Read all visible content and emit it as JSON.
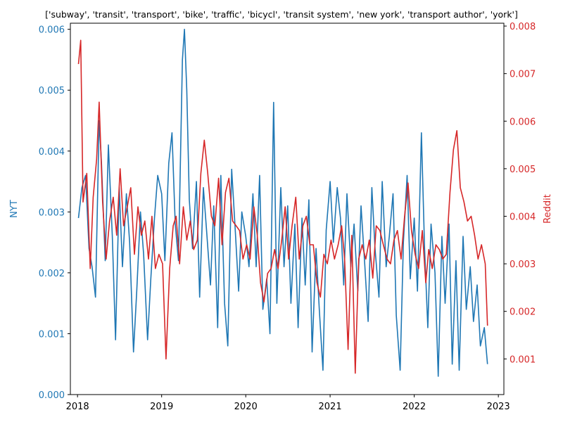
{
  "chart_data": {
    "type": "line",
    "title": "['subway', 'transit', 'transport', 'bike', 'traffic', 'bicycl', 'transit system', 'new york', 'transport author', 'york']",
    "xlabel": "",
    "x_ticks": [
      "2018",
      "2019",
      "2020",
      "2021",
      "2022",
      "2023"
    ],
    "xlim": [
      "2017-12-01",
      "2023-01-25"
    ],
    "grid": false,
    "series": [
      {
        "name": "NYT",
        "axis": "left",
        "color": "#1f77b4",
        "ylabel": "NYT",
        "ylim": [
          0,
          0.0061
        ],
        "y_ticks": [
          "0.000",
          "0.001",
          "0.002",
          "0.003",
          "0.004",
          "0.005",
          "0.006"
        ],
        "x": [
          "2018-01-05",
          "2018-01-20",
          "2018-02-05",
          "2018-02-20",
          "2018-03-05",
          "2018-03-20",
          "2018-04-05",
          "2018-04-15",
          "2018-05-01",
          "2018-05-15",
          "2018-06-01",
          "2018-06-15",
          "2018-07-01",
          "2018-07-15",
          "2018-08-01",
          "2018-08-15",
          "2018-09-01",
          "2018-09-15",
          "2018-10-01",
          "2018-10-15",
          "2018-11-01",
          "2018-11-15",
          "2018-12-01",
          "2018-12-15",
          "2019-01-01",
          "2019-01-15",
          "2019-02-01",
          "2019-02-15",
          "2019-03-01",
          "2019-03-15",
          "2019-04-01",
          "2019-04-10",
          "2019-04-20",
          "2019-05-01",
          "2019-05-15",
          "2019-06-01",
          "2019-06-15",
          "2019-07-01",
          "2019-07-15",
          "2019-08-01",
          "2019-08-15",
          "2019-09-01",
          "2019-09-15",
          "2019-10-01",
          "2019-10-15",
          "2019-11-01",
          "2019-11-15",
          "2019-12-01",
          "2019-12-15",
          "2020-01-01",
          "2020-01-15",
          "2020-02-01",
          "2020-02-15",
          "2020-03-01",
          "2020-03-15",
          "2020-04-01",
          "2020-04-15",
          "2020-05-01",
          "2020-05-15",
          "2020-06-01",
          "2020-06-15",
          "2020-07-01",
          "2020-07-15",
          "2020-08-01",
          "2020-08-15",
          "2020-09-01",
          "2020-09-15",
          "2020-10-01",
          "2020-10-15",
          "2020-11-01",
          "2020-11-15",
          "2020-12-01",
          "2020-12-15",
          "2021-01-01",
          "2021-01-15",
          "2021-02-01",
          "2021-02-15",
          "2021-03-01",
          "2021-03-15",
          "2021-04-01",
          "2021-04-15",
          "2021-05-01",
          "2021-05-15",
          "2021-06-01",
          "2021-06-15",
          "2021-07-01",
          "2021-07-15",
          "2021-08-01",
          "2021-08-15",
          "2021-09-01",
          "2021-09-15",
          "2021-10-01",
          "2021-10-15",
          "2021-11-01",
          "2021-11-15",
          "2021-12-01",
          "2021-12-15",
          "2022-01-01",
          "2022-01-15",
          "2022-02-01",
          "2022-02-15",
          "2022-03-01",
          "2022-03-15",
          "2022-04-01",
          "2022-04-15",
          "2022-05-01",
          "2022-05-15",
          "2022-06-01",
          "2022-06-15",
          "2022-07-01",
          "2022-07-15",
          "2022-08-01",
          "2022-08-15",
          "2022-09-01",
          "2022-09-15",
          "2022-10-01",
          "2022-10-15",
          "2022-11-01",
          "2022-11-15"
        ],
        "values": [
          0.0029,
          0.0034,
          0.0036,
          0.0024,
          0.0021,
          0.0016,
          0.0045,
          0.0038,
          0.0022,
          0.0041,
          0.0026,
          0.0009,
          0.0034,
          0.0021,
          0.0033,
          0.0025,
          0.0007,
          0.0017,
          0.003,
          0.0023,
          0.0009,
          0.0019,
          0.0029,
          0.0036,
          0.0033,
          0.0022,
          0.0038,
          0.0043,
          0.0028,
          0.0022,
          0.0055,
          0.006,
          0.005,
          0.0032,
          0.0024,
          0.0035,
          0.0016,
          0.0034,
          0.0027,
          0.0018,
          0.0031,
          0.0011,
          0.0036,
          0.0015,
          0.0008,
          0.0037,
          0.0028,
          0.0017,
          0.003,
          0.0026,
          0.0021,
          0.0033,
          0.0021,
          0.0036,
          0.0014,
          0.0019,
          0.001,
          0.0048,
          0.0015,
          0.0034,
          0.0021,
          0.0031,
          0.0015,
          0.0028,
          0.0011,
          0.0029,
          0.0018,
          0.0032,
          0.0007,
          0.0024,
          0.0014,
          0.0004,
          0.0027,
          0.0035,
          0.0025,
          0.0034,
          0.0029,
          0.0018,
          0.0033,
          0.0021,
          0.0028,
          0.0017,
          0.0031,
          0.0021,
          0.0012,
          0.0034,
          0.0024,
          0.0016,
          0.0035,
          0.0021,
          0.0026,
          0.0033,
          0.0013,
          0.0004,
          0.0025,
          0.0036,
          0.0019,
          0.0029,
          0.0017,
          0.0043,
          0.0024,
          0.0011,
          0.0028,
          0.002,
          0.0003,
          0.0026,
          0.0015,
          0.0028,
          0.0005,
          0.0022,
          0.0004,
          0.0026,
          0.0014,
          0.0021,
          0.0012,
          0.0018,
          0.0008,
          0.0011,
          0.0005
        ]
      },
      {
        "name": "Reddit",
        "axis": "right",
        "color": "#d62728",
        "ylabel": "Reddit",
        "ylim": [
          0.00025,
          0.00806
        ],
        "y_ticks": [
          "0.001",
          "0.002",
          "0.003",
          "0.004",
          "0.005",
          "0.006",
          "0.007",
          "0.008"
        ],
        "x": [
          "2018-01-05",
          "2018-01-15",
          "2018-01-25",
          "2018-02-10",
          "2018-02-25",
          "2018-03-10",
          "2018-03-25",
          "2018-04-05",
          "2018-04-20",
          "2018-05-05",
          "2018-05-20",
          "2018-06-05",
          "2018-06-20",
          "2018-07-05",
          "2018-07-20",
          "2018-08-05",
          "2018-08-20",
          "2018-09-05",
          "2018-09-20",
          "2018-10-05",
          "2018-10-20",
          "2018-11-05",
          "2018-11-20",
          "2018-12-05",
          "2018-12-20",
          "2019-01-05",
          "2019-01-20",
          "2019-02-05",
          "2019-02-20",
          "2019-03-05",
          "2019-03-20",
          "2019-04-05",
          "2019-04-20",
          "2019-05-05",
          "2019-05-20",
          "2019-06-05",
          "2019-06-20",
          "2019-07-05",
          "2019-07-20",
          "2019-08-05",
          "2019-08-20",
          "2019-09-05",
          "2019-09-20",
          "2019-10-05",
          "2019-10-20",
          "2019-11-05",
          "2019-11-20",
          "2019-12-05",
          "2019-12-20",
          "2020-01-05",
          "2020-01-20",
          "2020-02-05",
          "2020-02-20",
          "2020-03-05",
          "2020-03-20",
          "2020-04-05",
          "2020-04-20",
          "2020-05-05",
          "2020-05-20",
          "2020-06-05",
          "2020-06-20",
          "2020-07-05",
          "2020-07-20",
          "2020-08-05",
          "2020-08-20",
          "2020-09-05",
          "2020-09-20",
          "2020-10-05",
          "2020-10-20",
          "2020-11-05",
          "2020-11-20",
          "2020-12-05",
          "2020-12-20",
          "2021-01-05",
          "2021-01-20",
          "2021-02-05",
          "2021-02-20",
          "2021-03-05",
          "2021-03-20",
          "2021-04-05",
          "2021-04-20",
          "2021-05-05",
          "2021-05-20",
          "2021-06-05",
          "2021-06-20",
          "2021-07-05",
          "2021-07-20",
          "2021-08-05",
          "2021-08-20",
          "2021-09-05",
          "2021-09-20",
          "2021-10-05",
          "2021-10-20",
          "2021-11-05",
          "2021-11-20",
          "2021-12-05",
          "2021-12-20",
          "2022-01-05",
          "2022-01-20",
          "2022-02-05",
          "2022-02-20",
          "2022-03-05",
          "2022-03-20",
          "2022-04-05",
          "2022-04-20",
          "2022-05-05",
          "2022-05-20",
          "2022-06-05",
          "2022-06-20",
          "2022-07-05",
          "2022-07-20",
          "2022-08-05",
          "2022-08-20",
          "2022-09-05",
          "2022-09-20",
          "2022-10-05",
          "2022-10-20",
          "2022-11-05",
          "2022-11-15"
        ],
        "values": [
          0.0072,
          0.0077,
          0.0043,
          0.0049,
          0.0029,
          0.0044,
          0.0052,
          0.0064,
          0.0043,
          0.0031,
          0.0039,
          0.0044,
          0.0036,
          0.005,
          0.0038,
          0.0042,
          0.0046,
          0.0032,
          0.0042,
          0.0036,
          0.0039,
          0.0031,
          0.004,
          0.0029,
          0.0032,
          0.003,
          0.001,
          0.0029,
          0.0038,
          0.004,
          0.003,
          0.0042,
          0.0035,
          0.0039,
          0.0033,
          0.0035,
          0.0049,
          0.0056,
          0.0049,
          0.004,
          0.0038,
          0.0048,
          0.0034,
          0.0045,
          0.0048,
          0.0039,
          0.0038,
          0.0037,
          0.0031,
          0.0034,
          0.0031,
          0.0042,
          0.0036,
          0.0026,
          0.0022,
          0.0028,
          0.0029,
          0.0033,
          0.0029,
          0.0035,
          0.0042,
          0.0031,
          0.0038,
          0.0044,
          0.0031,
          0.0038,
          0.004,
          0.0034,
          0.0034,
          0.0026,
          0.0023,
          0.0032,
          0.003,
          0.0035,
          0.0031,
          0.0034,
          0.0038,
          0.0031,
          0.0012,
          0.0036,
          0.0007,
          0.0031,
          0.0034,
          0.0031,
          0.0035,
          0.0027,
          0.0038,
          0.0037,
          0.0034,
          0.0031,
          0.003,
          0.0035,
          0.0037,
          0.0031,
          0.004,
          0.0047,
          0.0037,
          0.0032,
          0.0029,
          0.0037,
          0.0026,
          0.0033,
          0.0029,
          0.0034,
          0.0033,
          0.0031,
          0.0032,
          0.0045,
          0.0054,
          0.0058,
          0.0046,
          0.0043,
          0.0039,
          0.004,
          0.0036,
          0.0031,
          0.0034,
          0.003,
          0.0017
        ]
      }
    ]
  }
}
